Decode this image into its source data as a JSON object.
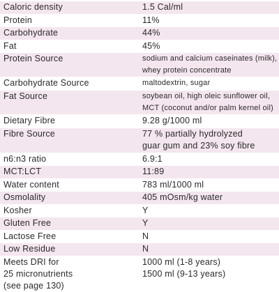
{
  "rows": [
    {
      "label": [
        "Caloric density"
      ],
      "value": [
        "1.5 Cal/ml"
      ],
      "shaded": true
    },
    {
      "label": [
        "Protein"
      ],
      "value": [
        "11%"
      ],
      "shaded": false
    },
    {
      "label": [
        "Carbohydrate"
      ],
      "value": [
        "44%"
      ],
      "shaded": true
    },
    {
      "label": [
        "Fat"
      ],
      "value": [
        "45%"
      ],
      "shaded": false
    },
    {
      "label": [
        "Protein Source"
      ],
      "value": [
        "sodium and calcium caseinates (milk),",
        "whey protein concentrate"
      ],
      "shaded": true,
      "small": true
    },
    {
      "label": [
        "Carbohydrate Source"
      ],
      "value": [
        "maltodextrin, sugar"
      ],
      "shaded": false,
      "small": true
    },
    {
      "label": [
        "Fat Source"
      ],
      "value": [
        "soybean oil, high oleic sunflower oil,",
        "MCT (coconut and/or palm kernel oil)"
      ],
      "shaded": true,
      "small": true
    },
    {
      "label": [
        "Dietary Fibre"
      ],
      "value": [
        "9.28 g/1000 ml"
      ],
      "shaded": false
    },
    {
      "label": [
        "Fibre Source"
      ],
      "value": [
        "77 % partially hydrolyzed",
        "guar gum and 23% soy fibre"
      ],
      "shaded": true
    },
    {
      "label": [
        "n6:n3 ratio"
      ],
      "value": [
        "6.9:1"
      ],
      "shaded": false
    },
    {
      "label": [
        "MCT:LCT"
      ],
      "value": [
        "11:89"
      ],
      "shaded": true
    },
    {
      "label": [
        "Water content"
      ],
      "value": [
        "783 ml/1000 ml"
      ],
      "shaded": false
    },
    {
      "label": [
        "Osmolality"
      ],
      "value": [
        "405 mOsm/kg water"
      ],
      "shaded": true
    },
    {
      "label": [
        "Kosher"
      ],
      "value": [
        "Y"
      ],
      "shaded": false
    },
    {
      "label": [
        "Gluten Free"
      ],
      "value": [
        "Y"
      ],
      "shaded": true
    },
    {
      "label": [
        "Lactose Free"
      ],
      "value": [
        "N"
      ],
      "shaded": false
    },
    {
      "label": [
        "Low Residue"
      ],
      "value": [
        "N"
      ],
      "shaded": true
    },
    {
      "label": [
        "Meets DRI for",
        "25 micronutrients",
        "(see page 130)"
      ],
      "value": [
        "1000 ml (1-8 years)",
        "1500 ml (9-13 years)"
      ],
      "shaded": false,
      "tail": true
    }
  ]
}
